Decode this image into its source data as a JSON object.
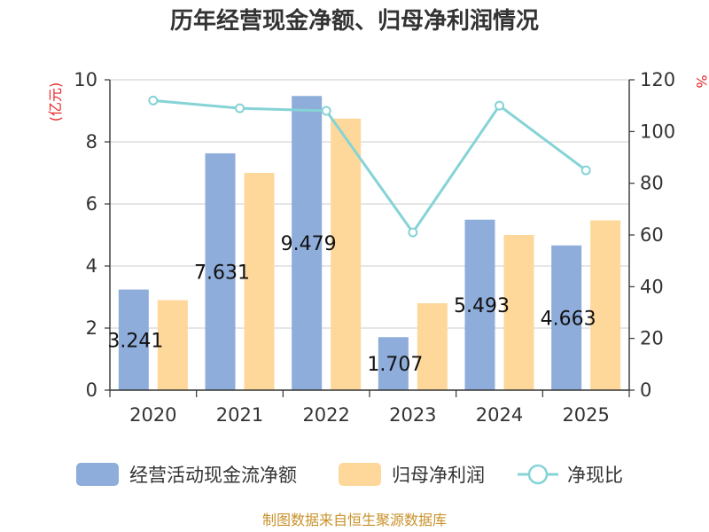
{
  "chart_data": {
    "type": "bar",
    "title": "历年经营现金净额、归母净利润情况",
    "categories": [
      "2020",
      "2021",
      "2022",
      "2023",
      "2024",
      "2025"
    ],
    "series": [
      {
        "name": "经营活动现金流净额",
        "type": "bar",
        "axis": "left",
        "color": "#8eadda",
        "values": [
          3.241,
          7.631,
          9.479,
          1.707,
          5.493,
          4.663
        ],
        "labels": [
          "3.241",
          "7.631",
          "9.479",
          "1.707",
          "5.493",
          "4.663"
        ]
      },
      {
        "name": "归母净利润",
        "type": "bar",
        "axis": "left",
        "color": "#fdd89a",
        "values": [
          2.9,
          7.0,
          8.75,
          2.8,
          5.0,
          5.47
        ]
      },
      {
        "name": "净现比",
        "type": "line",
        "axis": "right",
        "color": "#86d3d6",
        "values": [
          112,
          109,
          108,
          61,
          110,
          85
        ]
      }
    ],
    "y_left": {
      "unit": "(亿元)",
      "min": 0,
      "max": 10,
      "ticks": [
        0,
        2,
        4,
        6,
        8,
        10
      ]
    },
    "y_right": {
      "unit": "%",
      "min": 0,
      "max": 120,
      "ticks": [
        0,
        20,
        40,
        60,
        80,
        100,
        120
      ]
    },
    "grid": true,
    "legend_position": "bottom"
  },
  "source_text": "制图数据来自恒生聚源数据库"
}
